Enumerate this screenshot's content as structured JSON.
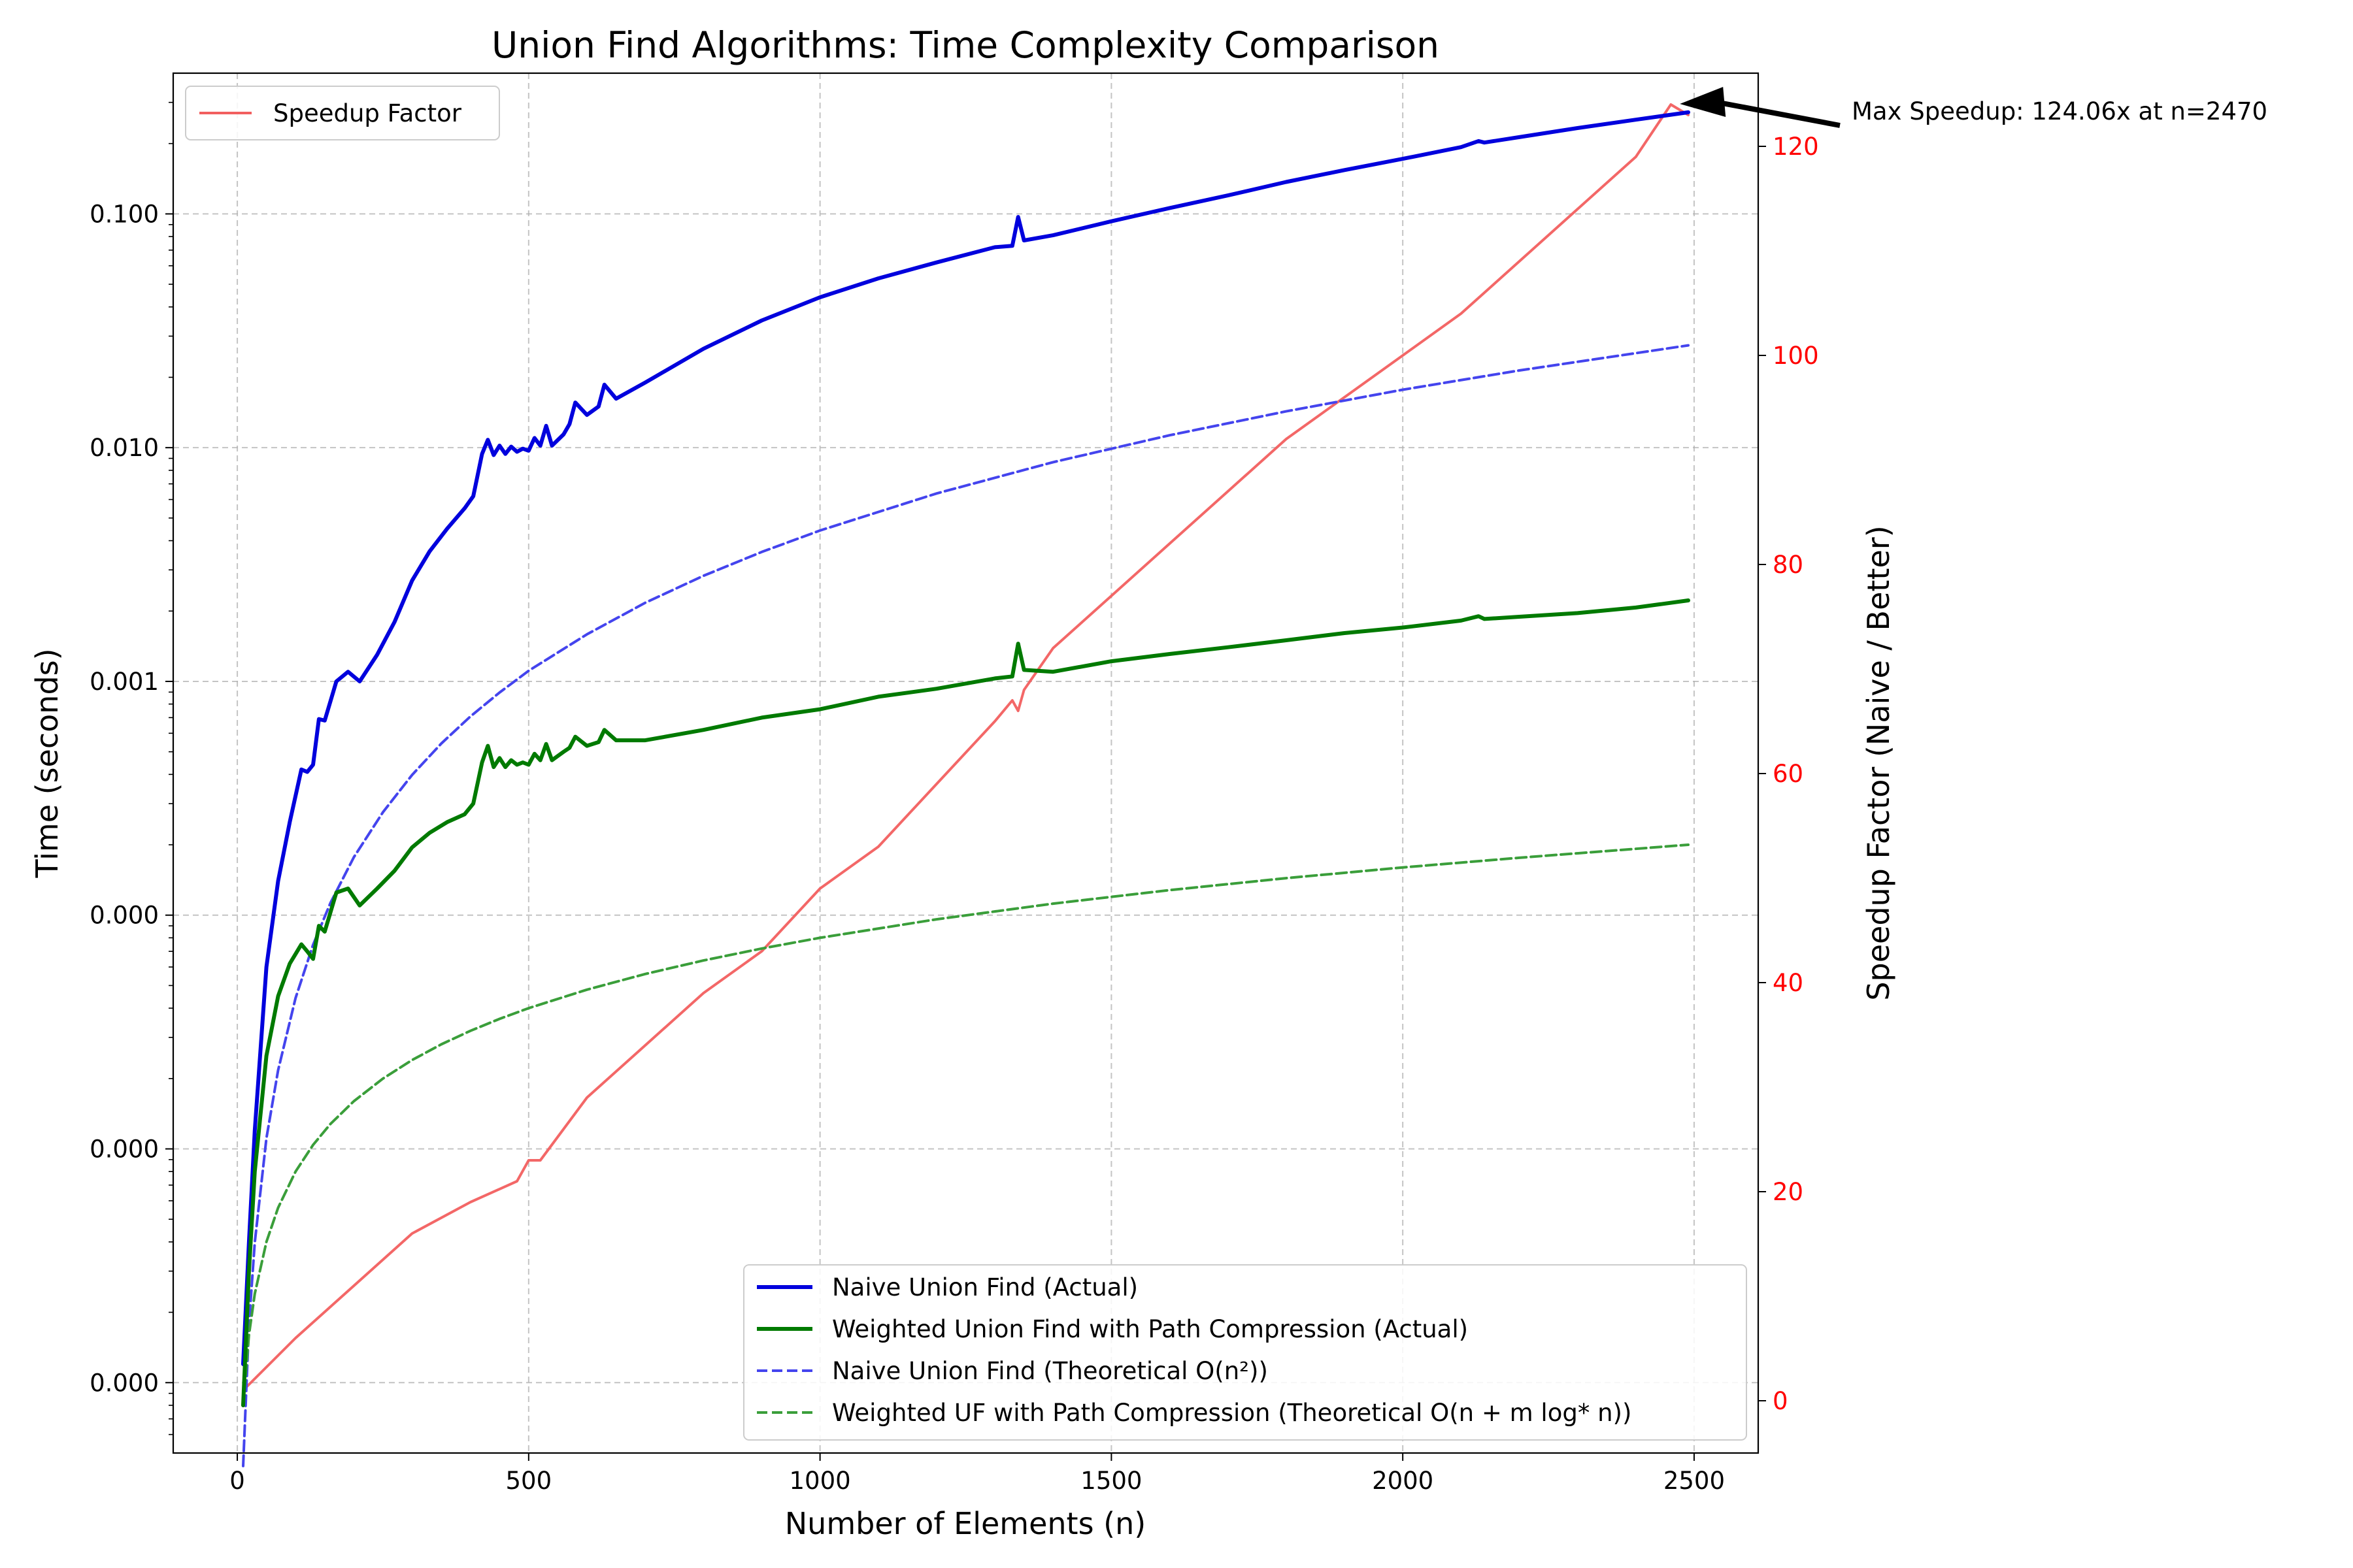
{
  "chart_data": {
    "type": "line",
    "title": "Union Find Algorithms: Time Complexity Comparison",
    "xlabel": "Number of Elements (n)",
    "ylabel": "Time (seconds)",
    "ylabel_right": "Speedup Factor (Naive / Better)",
    "xlim": [
      -110,
      2610
    ],
    "ylim_log": [
      5e-07,
      0.4
    ],
    "ylim_right": [
      -5,
      127
    ],
    "x_ticks": [
      0,
      500,
      1000,
      1500,
      2000,
      2500
    ],
    "x_tick_labels": [
      "0",
      "500",
      "1000",
      "1500",
      "2000",
      "2500"
    ],
    "y_ticks": [
      1e-06,
      1e-05,
      0.0001,
      0.001,
      0.01,
      0.1
    ],
    "y_tick_labels": [
      "0.000",
      "0.000",
      "0.000",
      "0.001",
      "0.010",
      "0.100"
    ],
    "y_right_ticks": [
      0,
      20,
      40,
      60,
      80,
      100,
      120
    ],
    "y_right_tick_labels": [
      "0",
      "20",
      "40",
      "60",
      "80",
      "100",
      "120"
    ],
    "grid": true,
    "colors": {
      "naive": "#0000dd",
      "weighted": "#007a00",
      "naive_theory": "#4444ee",
      "weighted_theory": "#3a9e3a",
      "speedup": "#f25f5f",
      "right_axis": "#ff0000"
    },
    "series": [
      {
        "name": "Naive Union Find (Actual)",
        "style": "solid",
        "x": [
          10,
          20,
          30,
          50,
          70,
          90,
          110,
          120,
          130,
          140,
          150,
          170,
          190,
          210,
          240,
          270,
          300,
          330,
          360,
          390,
          405,
          420,
          430,
          440,
          450,
          460,
          470,
          480,
          490,
          500,
          510,
          520,
          530,
          540,
          560,
          570,
          580,
          600,
          620,
          630,
          650,
          700,
          800,
          900,
          1000,
          1100,
          1200,
          1300,
          1330,
          1340,
          1350,
          1400,
          1500,
          1600,
          1700,
          1800,
          1900,
          2000,
          2100,
          2130,
          2140,
          2200,
          2300,
          2400,
          2490
        ],
        "y": [
          1.2e-06,
          4e-06,
          1.2e-05,
          6e-05,
          0.00014,
          0.00025,
          0.00042,
          0.00041,
          0.00044,
          0.00069,
          0.00068,
          0.001,
          0.0011,
          0.001,
          0.0013,
          0.0018,
          0.0027,
          0.0036,
          0.0045,
          0.0055,
          0.0062,
          0.0094,
          0.0108,
          0.0093,
          0.0102,
          0.0094,
          0.0101,
          0.0096,
          0.0099,
          0.0097,
          0.011,
          0.0102,
          0.0124,
          0.0102,
          0.0114,
          0.0126,
          0.0156,
          0.0138,
          0.015,
          0.0186,
          0.0162,
          0.019,
          0.0265,
          0.035,
          0.044,
          0.053,
          0.062,
          0.072,
          0.073,
          0.097,
          0.077,
          0.081,
          0.093,
          0.106,
          0.12,
          0.137,
          0.154,
          0.172,
          0.193,
          0.205,
          0.202,
          0.213,
          0.233,
          0.253,
          0.272
        ]
      },
      {
        "name": "Weighted Union Find with Path Compression (Actual)",
        "style": "solid",
        "x": [
          10,
          20,
          30,
          50,
          70,
          90,
          110,
          120,
          130,
          140,
          150,
          170,
          190,
          210,
          240,
          270,
          300,
          330,
          360,
          390,
          405,
          420,
          430,
          440,
          450,
          460,
          470,
          480,
          490,
          500,
          510,
          520,
          530,
          540,
          560,
          570,
          580,
          600,
          620,
          630,
          650,
          700,
          800,
          900,
          1000,
          1100,
          1200,
          1300,
          1330,
          1340,
          1350,
          1400,
          1500,
          1600,
          1700,
          1800,
          1900,
          2000,
          2100,
          2130,
          2140,
          2200,
          2300,
          2400,
          2490
        ],
        "y": [
          8e-07,
          3e-06,
          8e-06,
          2.5e-05,
          4.5e-05,
          6.2e-05,
          7.5e-05,
          7e-05,
          6.5e-05,
          9e-05,
          8.5e-05,
          0.000125,
          0.00013,
          0.00011,
          0.00013,
          0.000155,
          0.000195,
          0.000225,
          0.00025,
          0.00027,
          0.0003,
          0.00045,
          0.00053,
          0.00043,
          0.00047,
          0.00043,
          0.00046,
          0.00044,
          0.00045,
          0.00044,
          0.00049,
          0.00046,
          0.00054,
          0.00046,
          0.0005,
          0.00052,
          0.00058,
          0.00053,
          0.00055,
          0.00062,
          0.00056,
          0.00056,
          0.00062,
          0.0007,
          0.00076,
          0.00086,
          0.00093,
          0.00103,
          0.00105,
          0.00145,
          0.00112,
          0.0011,
          0.00122,
          0.00131,
          0.0014,
          0.0015,
          0.00161,
          0.0017,
          0.00182,
          0.0019,
          0.00185,
          0.00189,
          0.00196,
          0.00207,
          0.00222
        ]
      },
      {
        "name": "Naive Union Find (Theoretical O(n²))",
        "style": "dashed",
        "x": [
          10,
          20,
          30,
          50,
          70,
          100,
          130,
          160,
          200,
          250,
          300,
          350,
          400,
          450,
          500,
          600,
          700,
          800,
          900,
          1000,
          1200,
          1400,
          1600,
          1800,
          2000,
          2200,
          2490
        ],
        "y": [
          4.4e-07,
          1.77e-06,
          3.98e-06,
          1.11e-05,
          2.17e-05,
          4.42e-05,
          7.47e-05,
          0.000113,
          0.000177,
          0.000276,
          0.000398,
          0.000542,
          0.000708,
          0.000896,
          0.00111,
          0.00159,
          0.00217,
          0.00283,
          0.00358,
          0.00442,
          0.00637,
          0.00867,
          0.0113,
          0.0143,
          0.0177,
          0.0214,
          0.0274
        ]
      },
      {
        "name": "Weighted UF with Path Compression (Theoretical O(n + m log* n))",
        "style": "dashed",
        "x": [
          10,
          20,
          30,
          50,
          70,
          100,
          130,
          160,
          200,
          250,
          300,
          350,
          400,
          450,
          500,
          600,
          700,
          800,
          900,
          1000,
          1200,
          1400,
          1600,
          1800,
          2000,
          2200,
          2490
        ],
        "y": [
          8e-07,
          1.6e-06,
          2.4e-06,
          4e-06,
          5.6e-06,
          8e-06,
          1.04e-05,
          1.28e-05,
          1.6e-05,
          2e-05,
          2.4e-05,
          2.8e-05,
          3.2e-05,
          3.6e-05,
          4e-05,
          4.8e-05,
          5.6e-05,
          6.4e-05,
          7.2e-05,
          8e-05,
          9.6e-05,
          0.000112,
          0.000128,
          0.000144,
          0.00016,
          0.000176,
          0.0002
        ]
      },
      {
        "name": "Speedup Factor",
        "style": "solid",
        "axis": "right",
        "x": [
          10,
          100,
          200,
          300,
          400,
          480,
          500,
          520,
          600,
          700,
          800,
          900,
          1000,
          1100,
          1200,
          1300,
          1330,
          1340,
          1350,
          1400,
          1500,
          1600,
          1700,
          1800,
          1900,
          2000,
          2100,
          2200,
          2300,
          2400,
          2460,
          2490
        ],
        "y": [
          1,
          6,
          11,
          16,
          19,
          21,
          23,
          23,
          29,
          34,
          39,
          43,
          49,
          53,
          59,
          65,
          67,
          66,
          68,
          72,
          77,
          82,
          87,
          92,
          96,
          100,
          104,
          109,
          114,
          119,
          124,
          123
        ]
      }
    ],
    "annotations": [
      {
        "text": "Max Speedup: 124.06x at n=2470",
        "x": 2470,
        "y_right": 124.06
      }
    ]
  }
}
